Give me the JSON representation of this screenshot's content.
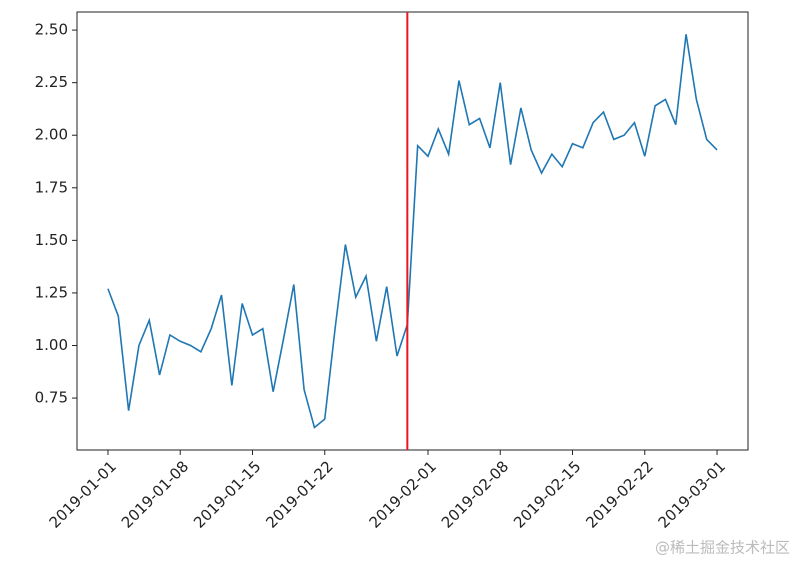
{
  "chart_data": {
    "type": "line",
    "x": [
      "2019-01-01",
      "2019-01-02",
      "2019-01-03",
      "2019-01-04",
      "2019-01-05",
      "2019-01-06",
      "2019-01-07",
      "2019-01-08",
      "2019-01-09",
      "2019-01-10",
      "2019-01-11",
      "2019-01-12",
      "2019-01-13",
      "2019-01-14",
      "2019-01-15",
      "2019-01-16",
      "2019-01-17",
      "2019-01-18",
      "2019-01-19",
      "2019-01-20",
      "2019-01-21",
      "2019-01-22",
      "2019-01-23",
      "2019-01-24",
      "2019-01-25",
      "2019-01-26",
      "2019-01-27",
      "2019-01-28",
      "2019-01-29",
      "2019-01-30",
      "2019-01-31",
      "2019-02-01",
      "2019-02-02",
      "2019-02-03",
      "2019-02-04",
      "2019-02-05",
      "2019-02-06",
      "2019-02-07",
      "2019-02-08",
      "2019-02-09",
      "2019-02-10",
      "2019-02-11",
      "2019-02-12",
      "2019-02-13",
      "2019-02-14",
      "2019-02-15",
      "2019-02-16",
      "2019-02-17",
      "2019-02-18",
      "2019-02-19",
      "2019-02-20",
      "2019-02-21",
      "2019-02-22",
      "2019-02-23",
      "2019-02-24",
      "2019-02-25",
      "2019-02-26",
      "2019-02-27",
      "2019-02-28",
      "2019-03-01"
    ],
    "values": [
      1.27,
      1.14,
      0.69,
      1.0,
      1.12,
      0.86,
      1.05,
      1.02,
      1.0,
      0.97,
      1.08,
      1.24,
      0.81,
      1.2,
      1.05,
      1.08,
      0.78,
      1.03,
      1.29,
      0.79,
      0.61,
      0.65,
      1.08,
      1.48,
      1.23,
      1.33,
      1.02,
      1.28,
      0.95,
      1.1,
      1.95,
      1.9,
      2.03,
      1.91,
      2.26,
      2.05,
      2.08,
      1.94,
      2.25,
      1.86,
      2.13,
      1.93,
      1.82,
      1.91,
      1.85,
      1.96,
      1.94,
      2.06,
      2.11,
      1.98,
      2.0,
      2.06,
      1.9,
      2.14,
      2.17,
      2.05,
      2.48,
      2.17,
      1.98,
      1.93
    ],
    "color": "#1f77b4",
    "vline": "2019-01-30",
    "vline_color": "#e8171f",
    "xlim": [
      "2018-12-29",
      "2019-03-04"
    ],
    "xticks": [
      "2019-01-01",
      "2019-01-08",
      "2019-01-15",
      "2019-01-22",
      "2019-02-01",
      "2019-02-08",
      "2019-02-15",
      "2019-02-22",
      "2019-03-01"
    ],
    "ylim": [
      0.503,
      2.586
    ],
    "yticks": [
      {
        "value": 0.75,
        "label": "0.75"
      },
      {
        "value": 1.0,
        "label": "1.00"
      },
      {
        "value": 1.25,
        "label": "1.25"
      },
      {
        "value": 1.5,
        "label": "1.50"
      },
      {
        "value": 1.75,
        "label": "1.75"
      },
      {
        "value": 2.0,
        "label": "2.00"
      },
      {
        "value": 2.25,
        "label": "2.25"
      },
      {
        "value": 2.5,
        "label": "2.50"
      }
    ],
    "grid": false
  },
  "watermark": "@稀土掘金技术社区"
}
